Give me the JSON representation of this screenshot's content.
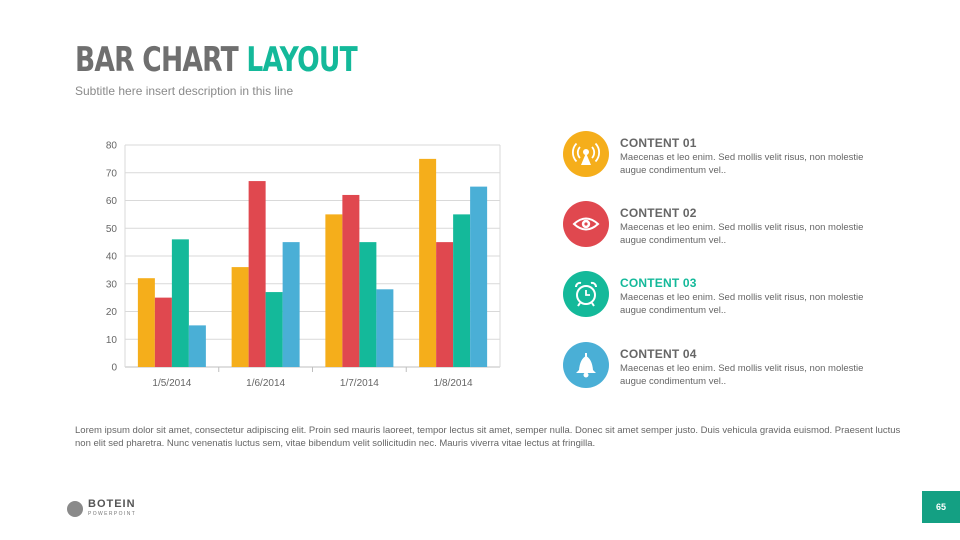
{
  "slide": {
    "title_part1": "BAR CHART",
    "title_part2": "LAYOUT",
    "subtitle": "Subtitle here insert description in this line",
    "paragraph": "Lorem ipsum dolor sit amet, consectetur adipiscing elit. Proin sed mauris laoreet, tempor lectus sit amet, semper nulla. Donec sit amet semper justo. Duis vehicula gravida euismod. Praesent luctus non elit sed pharetra. Nunc venenatis luctus sem, vitae bibendum velit sollicitudin nec. Mauris viverra vitae lectus at fringilla.",
    "page_number": "65"
  },
  "logo": {
    "name": "BOTEIN",
    "subtitle": "POWERPOINT"
  },
  "colors": {
    "orange": "#f5ae1b",
    "red": "#e0484f",
    "teal": "#14b99a",
    "blue": "#4aafd6",
    "grid": "#d9d9d9",
    "axis": "#bfbfbf"
  },
  "content_items": [
    {
      "heading": "CONTENT 01",
      "text": "Maecenas et leo enim. Sed mollis velit risus, non molestie augue condimentum vel..",
      "icon": "signal-tower-icon",
      "color": "#f5ae1b",
      "heading_color": "#666666"
    },
    {
      "heading": "CONTENT 02",
      "text": "Maecenas et leo enim. Sed mollis velit risus, non molestie augue condimentum vel..",
      "icon": "eye-icon",
      "color": "#e0484f",
      "heading_color": "#666666"
    },
    {
      "heading": "CONTENT 03",
      "text": "Maecenas et leo enim. Sed mollis velit risus, non molestie augue condimentum vel..",
      "icon": "alarm-clock-icon",
      "color": "#14b99a",
      "heading_color": "#14b99a"
    },
    {
      "heading": "CONTENT 04",
      "text": "Maecenas et leo enim. Sed mollis velit risus, non molestie augue condimentum vel..",
      "icon": "bell-icon",
      "color": "#4aafd6",
      "heading_color": "#666666"
    }
  ],
  "chart_data": {
    "type": "bar",
    "title": "",
    "xlabel": "",
    "ylabel": "",
    "categories": [
      "1/5/2014",
      "1/6/2014",
      "1/7/2014",
      "1/8/2014"
    ],
    "ylim": [
      0,
      80
    ],
    "yticks": [
      0,
      10,
      20,
      30,
      40,
      50,
      60,
      70,
      80
    ],
    "grid": true,
    "legend": "none",
    "series": [
      {
        "values": [
          32,
          36,
          55,
          75
        ],
        "color": "#f5ae1b"
      },
      {
        "values": [
          25,
          67,
          62,
          45
        ],
        "color": "#e0484f"
      },
      {
        "values": [
          46,
          27,
          45,
          55
        ],
        "color": "#14b99a"
      },
      {
        "values": [
          15,
          45,
          28,
          65
        ],
        "color": "#4aafd6"
      }
    ]
  }
}
